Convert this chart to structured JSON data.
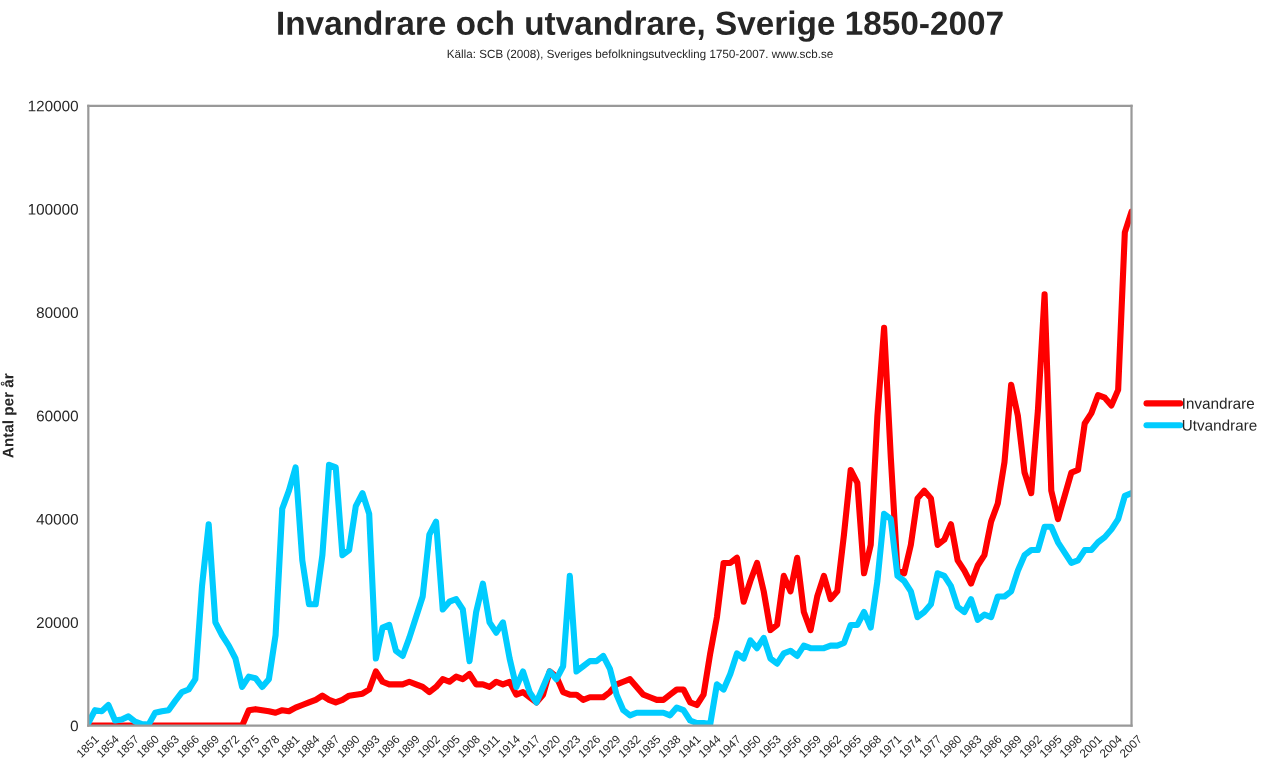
{
  "chart_data": {
    "type": "line",
    "title": "Invandrare och utvandrare, Sverige 1850-2007",
    "subtitle": "Källa: SCB (2008), Sveriges befolkningsutveckling 1750-2007. www.scb.se",
    "ylabel": "Antal per år",
    "categories": [
      "1851",
      null,
      null,
      "1854",
      null,
      null,
      "1857",
      null,
      null,
      "1860",
      null,
      null,
      "1863",
      null,
      null,
      "1866",
      null,
      null,
      "1869",
      null,
      null,
      "1872",
      null,
      null,
      "1875",
      null,
      null,
      "1878",
      null,
      null,
      "1881",
      null,
      null,
      "1884",
      null,
      null,
      "1887",
      null,
      null,
      "1890",
      null,
      null,
      "1893",
      null,
      null,
      "1896",
      null,
      null,
      "1899",
      null,
      null,
      "1902",
      null,
      null,
      "1905",
      null,
      null,
      "1908",
      null,
      null,
      "1911",
      null,
      null,
      "1914",
      null,
      null,
      "1917",
      null,
      null,
      "1920",
      null,
      null,
      "1923",
      null,
      null,
      "1926",
      null,
      null,
      "1929",
      null,
      null,
      "1932",
      null,
      null,
      "1935",
      null,
      null,
      "1938",
      null,
      null,
      "1941",
      null,
      null,
      "1944",
      null,
      null,
      "1947",
      null,
      null,
      "1950",
      null,
      null,
      "1953",
      null,
      null,
      "1956",
      null,
      null,
      "1959",
      null,
      null,
      "1962",
      null,
      null,
      "1965",
      null,
      null,
      "1968",
      null,
      null,
      "1971",
      null,
      null,
      "1974",
      null,
      null,
      "1977",
      null,
      null,
      "1980",
      null,
      null,
      "1983",
      null,
      null,
      "1986",
      null,
      null,
      "1989",
      null,
      null,
      "1992",
      null,
      null,
      "1995",
      null,
      null,
      "1998",
      null,
      null,
      "2001",
      null,
      null,
      "2004",
      null,
      null,
      "2007"
    ],
    "series": [
      {
        "name": "Invandrare",
        "color": "#ff0000",
        "values": [
          0,
          0,
          0,
          0,
          0,
          0,
          0,
          0,
          0,
          0,
          0,
          0,
          0,
          0,
          0,
          0,
          0,
          0,
          0,
          0,
          0,
          0,
          0,
          0,
          3000,
          3200,
          3000,
          2800,
          2500,
          3000,
          2800,
          3500,
          4000,
          4500,
          5000,
          5800,
          5000,
          4500,
          5000,
          5800,
          6000,
          6200,
          7000,
          10500,
          8500,
          8000,
          8000,
          8000,
          8500,
          8000,
          7500,
          6500,
          7500,
          9000,
          8500,
          9500,
          9000,
          10000,
          8000,
          8000,
          7500,
          8500,
          8000,
          8500,
          6000,
          6500,
          5500,
          4500,
          6000,
          10500,
          9500,
          6500,
          6000,
          6000,
          5000,
          5500,
          5500,
          5500,
          6500,
          8000,
          8500,
          9000,
          7500,
          6000,
          5500,
          5000,
          5000,
          6000,
          7000,
          7000,
          4500,
          4000,
          6000,
          14000,
          21000,
          31500,
          31500,
          32500,
          24000,
          28000,
          31500,
          26000,
          18500,
          19500,
          29000,
          26000,
          32500,
          22000,
          18500,
          25000,
          29000,
          24500,
          26000,
          37000,
          49500,
          47000,
          29500,
          35000,
          60000,
          77000,
          52000,
          30000,
          29500,
          35000,
          44000,
          45500,
          44000,
          35000,
          36000,
          39000,
          32000,
          30000,
          27500,
          31000,
          33000,
          39500,
          43000,
          51000,
          66000,
          60000,
          49000,
          45000,
          61000,
          83500,
          45500,
          40000,
          44500,
          49000,
          49500,
          58500,
          60500,
          64000,
          63500,
          62000,
          65000,
          95500,
          99500
        ]
      },
      {
        "name": "Utvandrare",
        "color": "#00ccff",
        "values": [
          500,
          3000,
          2800,
          4000,
          1000,
          1200,
          1800,
          800,
          300,
          200,
          2500,
          2800,
          3000,
          4800,
          6500,
          7000,
          9000,
          27000,
          39000,
          20000,
          17500,
          15500,
          13000,
          7500,
          9500,
          9200,
          7500,
          9000,
          17500,
          42000,
          45500,
          50000,
          32000,
          23500,
          23500,
          33000,
          50500,
          50000,
          33000,
          34000,
          42500,
          45000,
          41000,
          13000,
          19000,
          19500,
          14500,
          13500,
          17000,
          21000,
          25000,
          37000,
          39500,
          22500,
          24000,
          24500,
          22500,
          12500,
          22000,
          27500,
          20000,
          18000,
          20000,
          13000,
          7500,
          10500,
          6500,
          4500,
          7500,
          10500,
          9000,
          11500,
          29000,
          10500,
          11500,
          12500,
          12500,
          13500,
          11000,
          6000,
          3000,
          2000,
          2500,
          2500,
          2500,
          2500,
          2500,
          2000,
          3500,
          3000,
          1000,
          500,
          500,
          300,
          8000,
          7000,
          10000,
          14000,
          13000,
          16500,
          15000,
          17000,
          13000,
          12000,
          14000,
          14500,
          13500,
          15500,
          15000,
          15000,
          15000,
          15500,
          15500,
          16000,
          19500,
          19500,
          22000,
          19000,
          28000,
          41000,
          40000,
          29000,
          28000,
          26000,
          21000,
          22000,
          23500,
          29500,
          29000,
          27000,
          23000,
          22000,
          24500,
          20500,
          21500,
          21000,
          25000,
          25000,
          26000,
          30000,
          33000,
          34000,
          34000,
          38500,
          38500,
          35500,
          33500,
          31500,
          32000,
          34000,
          34000,
          35500,
          36500,
          38000,
          40000,
          44500,
          45000
        ]
      }
    ],
    "ylim": [
      0,
      120000
    ],
    "yticks": [
      0,
      20000,
      40000,
      60000,
      80000,
      100000,
      120000
    ],
    "grid": false,
    "legend": "right",
    "marker": "none",
    "line_style": "solid"
  }
}
